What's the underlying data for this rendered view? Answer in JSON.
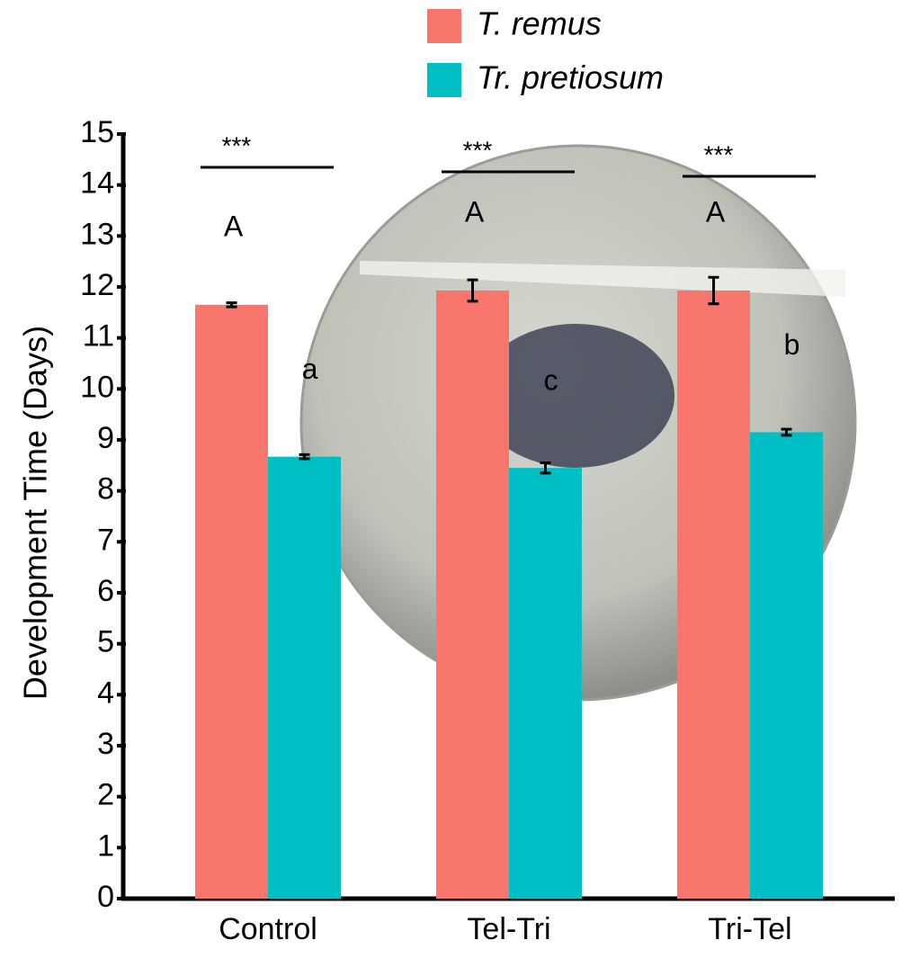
{
  "chart_data": {
    "type": "bar",
    "y_label": "Development Time (Days)",
    "categories": [
      "Control",
      "Tel-Tri",
      "Tri-Tel"
    ],
    "series": [
      {
        "name": "T. remus",
        "color": "#f8766d",
        "values": [
          11.65,
          11.93,
          11.93
        ],
        "errors": [
          0.04,
          0.21,
          0.26
        ],
        "letters": [
          "A",
          "A",
          "A"
        ]
      },
      {
        "name": "Tr. pretiosum",
        "color": "#00bfc4",
        "values": [
          8.67,
          8.45,
          9.15
        ],
        "errors": [
          0.04,
          0.1,
          0.06
        ],
        "letters": [
          "a",
          "c",
          "b"
        ]
      }
    ],
    "significance": [
      "***",
      "***",
      "***"
    ],
    "ylim": [
      0,
      15
    ],
    "yticks": [
      0,
      1,
      2,
      3,
      4,
      5,
      6,
      7,
      8,
      9,
      10,
      11,
      12,
      13,
      14,
      15
    ]
  }
}
